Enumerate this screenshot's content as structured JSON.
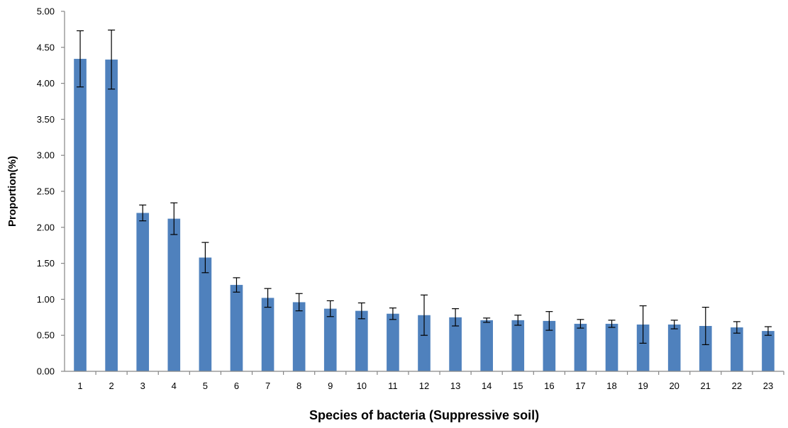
{
  "chart_data": {
    "type": "bar",
    "title": "",
    "xlabel": "Species of bacteria (Suppressive soil)",
    "ylabel": "Proportion(%)",
    "ylim": [
      0,
      5
    ],
    "y_ticks": [
      "0.00",
      "0.50",
      "1.00",
      "1.50",
      "2.00",
      "2.50",
      "3.00",
      "3.50",
      "4.00",
      "4.50",
      "5.00"
    ],
    "grid": false,
    "legend": "none",
    "categories": [
      "1",
      "2",
      "3",
      "4",
      "5",
      "6",
      "7",
      "8",
      "9",
      "10",
      "11",
      "12",
      "13",
      "14",
      "15",
      "16",
      "17",
      "18",
      "19",
      "20",
      "21",
      "22",
      "23"
    ],
    "values": [
      4.34,
      4.33,
      2.2,
      2.12,
      1.58,
      1.2,
      1.02,
      0.96,
      0.87,
      0.84,
      0.8,
      0.78,
      0.75,
      0.71,
      0.71,
      0.7,
      0.66,
      0.66,
      0.65,
      0.65,
      0.63,
      0.61,
      0.56
    ],
    "errors": [
      0.39,
      0.41,
      0.11,
      0.22,
      0.21,
      0.1,
      0.13,
      0.12,
      0.11,
      0.11,
      0.08,
      0.28,
      0.12,
      0.03,
      0.07,
      0.13,
      0.06,
      0.05,
      0.26,
      0.06,
      0.26,
      0.08,
      0.06
    ],
    "colors": {
      "bar": "#4f81bd",
      "axis": "#868686",
      "error_bar": "#000000"
    }
  }
}
